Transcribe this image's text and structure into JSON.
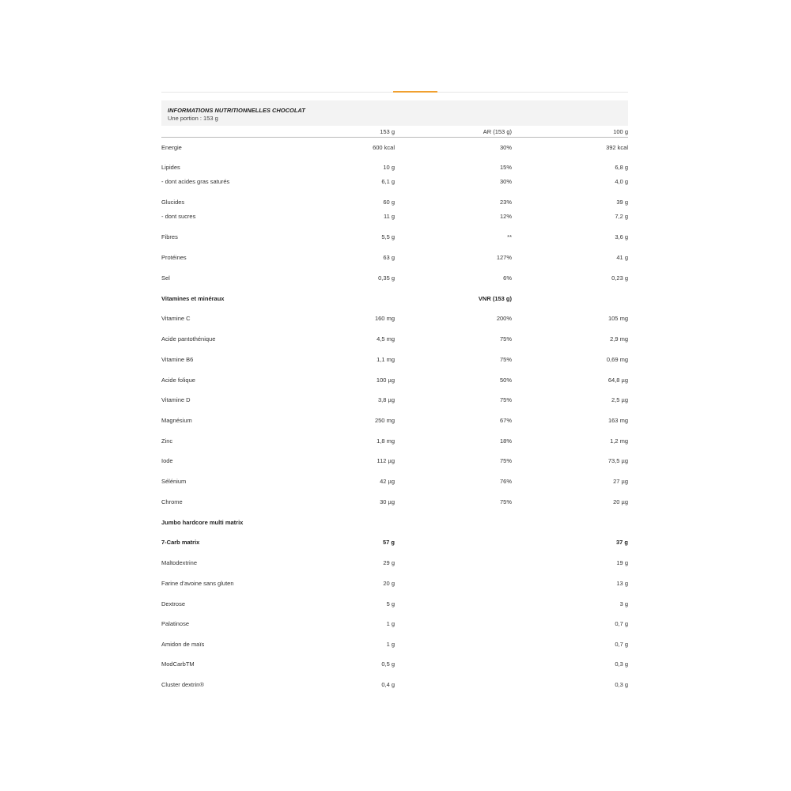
{
  "title": "INFORMATIONS NUTRITIONNELLES CHOCOLAT",
  "subtitle": "Une portion : 153 g",
  "accent_color": "#f0a030",
  "columns": [
    "",
    "153 g",
    "AR (153 g)",
    "100 g"
  ],
  "rows": [
    {
      "label": "Energie",
      "v1": "600 kcal",
      "v2": "30%",
      "v3": "392 kcal"
    },
    {
      "label": "Lipides",
      "v1": "10 g",
      "v2": "15%",
      "v3": "6,8 g"
    },
    {
      "label": "- dont acides gras saturés",
      "v1": "6,1 g",
      "v2": "30%",
      "v3": "4,0 g"
    },
    {
      "label": "Glucides",
      "v1": "60 g",
      "v2": "23%",
      "v3": "39 g"
    },
    {
      "label": "- dont sucres",
      "v1": "11 g",
      "v2": "12%",
      "v3": "7,2 g"
    },
    {
      "label": "Fibres",
      "v1": "5,5 g",
      "v2": "**",
      "v3": "3,6 g"
    },
    {
      "label": "Protéines",
      "v1": "63 g",
      "v2": "127%",
      "v3": "41 g"
    },
    {
      "label": "Sel",
      "v1": "0,35 g",
      "v2": "6%",
      "v3": "0,23 g"
    },
    {
      "label": "Vitamines et minéraux",
      "v1": "",
      "v2": "VNR (153 g)",
      "v3": "",
      "bold": true
    },
    {
      "label": "Vitamine C",
      "v1": "160 mg",
      "v2": "200%",
      "v3": "105 mg"
    },
    {
      "label": "Acide pantothénique",
      "v1": "4,5 mg",
      "v2": "75%",
      "v3": "2,9 mg"
    },
    {
      "label": "Vitamine B6",
      "v1": "1,1 mg",
      "v2": "75%",
      "v3": "0,69 mg"
    },
    {
      "label": "Acide folique",
      "v1": "100 µg",
      "v2": "50%",
      "v3": "64,8 µg"
    },
    {
      "label": "Vitamine D",
      "v1": "3,8 µg",
      "v2": "75%",
      "v3": "2,5 µg"
    },
    {
      "label": "Magnésium",
      "v1": "250 mg",
      "v2": "67%",
      "v3": "163 mg"
    },
    {
      "label": "Zinc",
      "v1": "1,8 mg",
      "v2": "18%",
      "v3": "1,2 mg"
    },
    {
      "label": "Iode",
      "v1": "112 µg",
      "v2": "75%",
      "v3": "73,5 µg"
    },
    {
      "label": "Sélénium",
      "v1": "42 µg",
      "v2": "76%",
      "v3": "27 µg"
    },
    {
      "label": "Chrome",
      "v1": "30 µg",
      "v2": "75%",
      "v3": "20 µg"
    },
    {
      "label": "Jumbo hardcore multi matrix",
      "v1": "",
      "v2": "",
      "v3": "",
      "bold": true
    },
    {
      "label": "7-Carb matrix",
      "v1": "57 g",
      "v2": "",
      "v3": "37 g",
      "bold": true
    },
    {
      "label": "Maltodextrine",
      "v1": "29 g",
      "v2": "",
      "v3": "19 g"
    },
    {
      "label": "Farine d'avoine sans gluten",
      "v1": "20 g",
      "v2": "",
      "v3": "13 g"
    },
    {
      "label": "Dextrose",
      "v1": "5 g",
      "v2": "",
      "v3": "3 g"
    },
    {
      "label": "Palatinose",
      "v1": "1 g",
      "v2": "",
      "v3": "0,7 g"
    },
    {
      "label": "Amidon de maïs",
      "v1": "1 g",
      "v2": "",
      "v3": "0,7 g"
    },
    {
      "label": "ModCarbTM",
      "v1": "0,5 g",
      "v2": "",
      "v3": "0,3 g"
    },
    {
      "label": "Cluster dextrin®",
      "v1": "0,4 g",
      "v2": "",
      "v3": "0,3 g"
    }
  ]
}
